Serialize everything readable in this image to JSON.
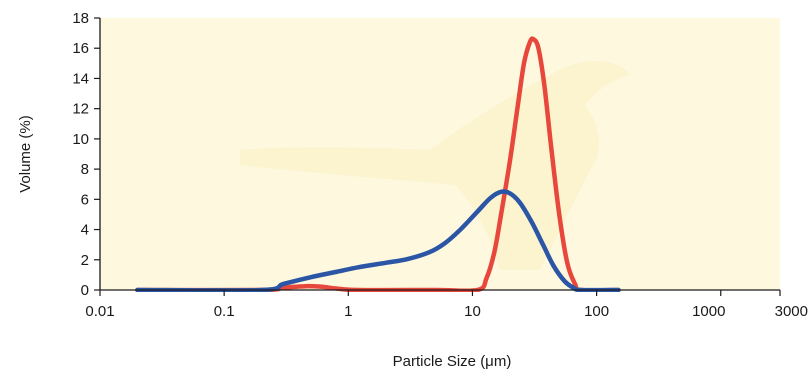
{
  "chart_data": {
    "type": "line",
    "title": "",
    "xlabel": "Particle Size (μm)",
    "ylabel": "Volume (%)",
    "xscale": "log",
    "xlim": [
      0.01,
      3000
    ],
    "ylim": [
      0,
      18
    ],
    "x_ticks": [
      0.01,
      0.1,
      1,
      10,
      100,
      1000,
      3000
    ],
    "x_tick_labels": [
      "0.01",
      "0.1",
      "1",
      "10",
      "100",
      "1000",
      "3000"
    ],
    "y_ticks": [
      0,
      2,
      4,
      6,
      8,
      10,
      12,
      14,
      16,
      18
    ],
    "y_tick_labels": [
      "0",
      "2",
      "4",
      "6",
      "8",
      "10",
      "12",
      "14",
      "16",
      "18"
    ],
    "grid": false,
    "plot_background": "#fdf8de",
    "series": [
      {
        "color": "#e8473c",
        "points": [
          [
            0.02,
            0
          ],
          [
            0.2,
            0
          ],
          [
            0.3,
            0.15
          ],
          [
            0.45,
            0.25
          ],
          [
            0.6,
            0.22
          ],
          [
            0.8,
            0.1
          ],
          [
            1.2,
            0
          ],
          [
            5,
            0
          ],
          [
            11,
            0
          ],
          [
            13,
            0.8
          ],
          [
            15,
            2.5
          ],
          [
            17,
            5
          ],
          [
            20,
            8.5
          ],
          [
            23,
            12
          ],
          [
            26,
            15
          ],
          [
            29,
            16.4
          ],
          [
            31,
            16.6
          ],
          [
            34,
            16
          ],
          [
            38,
            13.5
          ],
          [
            43,
            9.5
          ],
          [
            50,
            5
          ],
          [
            58,
            1.8
          ],
          [
            67,
            0.4
          ],
          [
            75,
            0
          ],
          [
            150,
            0
          ]
        ]
      },
      {
        "color": "#2b56a6",
        "points": [
          [
            0.02,
            0
          ],
          [
            0.2,
            0
          ],
          [
            0.3,
            0.4
          ],
          [
            0.5,
            0.85
          ],
          [
            0.8,
            1.2
          ],
          [
            1.2,
            1.5
          ],
          [
            2,
            1.8
          ],
          [
            3,
            2.05
          ],
          [
            4.5,
            2.5
          ],
          [
            6,
            3.1
          ],
          [
            8,
            4
          ],
          [
            11,
            5.2
          ],
          [
            14,
            6.1
          ],
          [
            17,
            6.5
          ],
          [
            20,
            6.4
          ],
          [
            24,
            5.8
          ],
          [
            30,
            4.5
          ],
          [
            37,
            3
          ],
          [
            45,
            1.6
          ],
          [
            55,
            0.6
          ],
          [
            65,
            0.15
          ],
          [
            75,
            0
          ],
          [
            150,
            0
          ]
        ]
      }
    ]
  }
}
